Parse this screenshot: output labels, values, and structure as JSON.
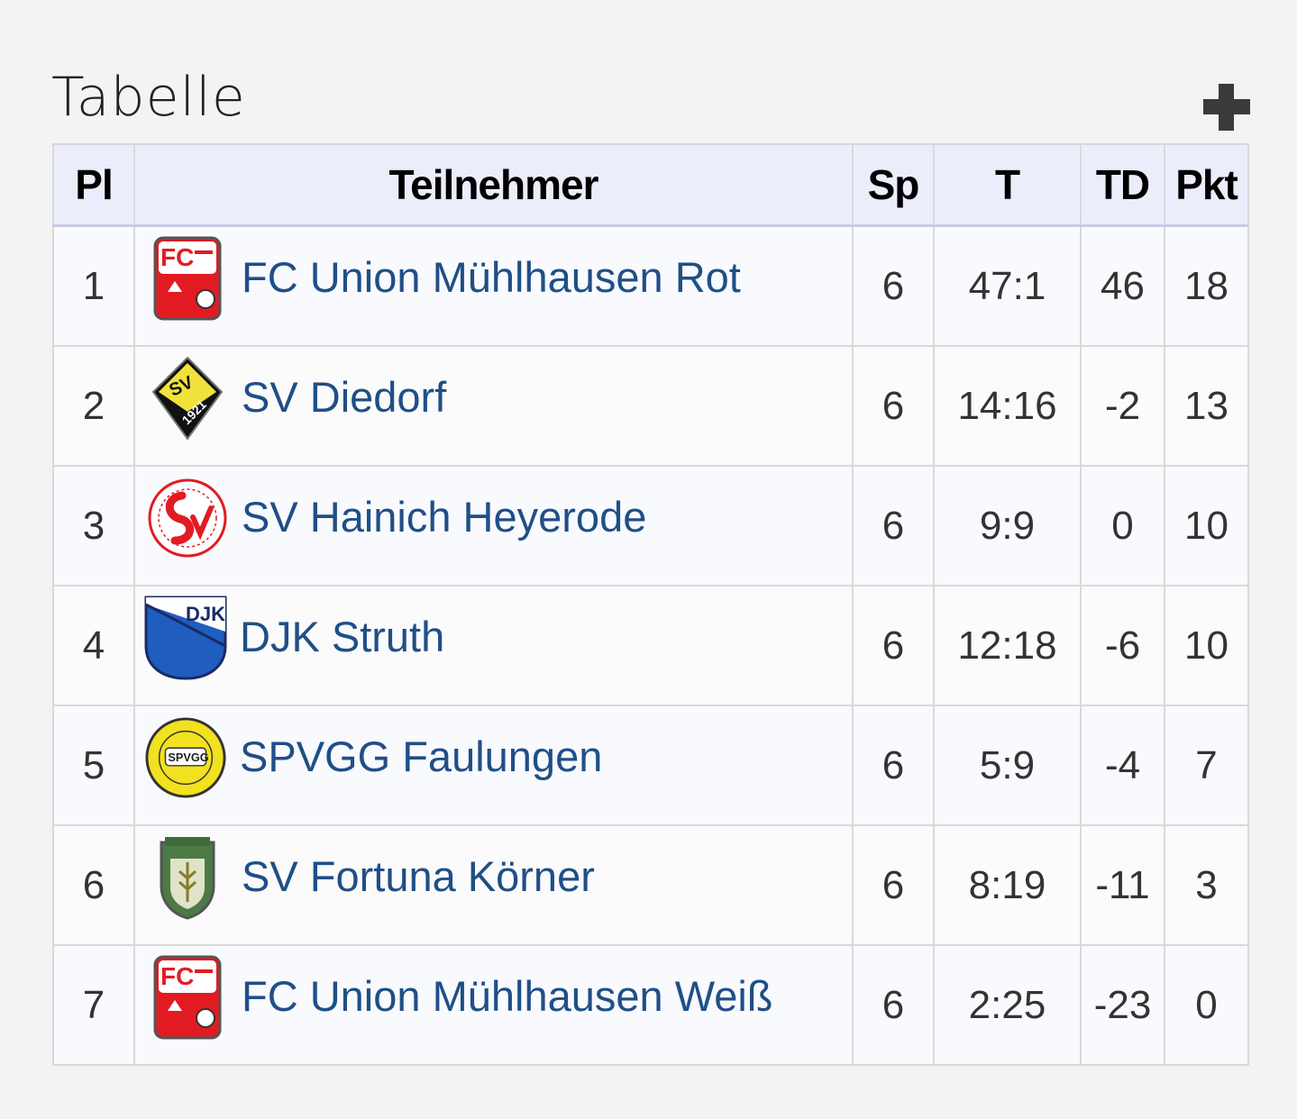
{
  "title": "Tabelle",
  "expand_icon": "plus-icon",
  "columns": {
    "pl": "Pl",
    "team": "Teilnehmer",
    "sp": "Sp",
    "t": "T",
    "td": "TD",
    "pkt": "Pkt"
  },
  "rows": [
    {
      "pl": "1",
      "team": "FC Union Mühlhausen Rot",
      "logo": "fc-union-muehlhausen-logo",
      "sp": "6",
      "t": "47:1",
      "td": "46",
      "pkt": "18"
    },
    {
      "pl": "2",
      "team": "SV Diedorf",
      "logo": "sv-diedorf-logo",
      "sp": "6",
      "t": "14:16",
      "td": "-2",
      "pkt": "13"
    },
    {
      "pl": "3",
      "team": "SV Hainich Heyerode",
      "logo": "sv-hainich-heyerode-logo",
      "sp": "6",
      "t": "9:9",
      "td": "0",
      "pkt": "10"
    },
    {
      "pl": "4",
      "team": "DJK Struth",
      "logo": "djk-struth-logo",
      "sp": "6",
      "t": "12:18",
      "td": "-6",
      "pkt": "10"
    },
    {
      "pl": "5",
      "team": "SPVGG Faulungen",
      "logo": "spvgg-faulungen-logo",
      "sp": "6",
      "t": "5:9",
      "td": "-4",
      "pkt": "7"
    },
    {
      "pl": "6",
      "team": "SV Fortuna Körner",
      "logo": "sv-fortuna-koerner-logo",
      "sp": "6",
      "t": "8:19",
      "td": "-11",
      "pkt": "3"
    },
    {
      "pl": "7",
      "team": "FC Union Mühlhausen Weiß",
      "logo": "fc-union-muehlhausen-logo",
      "sp": "6",
      "t": "2:25",
      "td": "-23",
      "pkt": "0"
    }
  ],
  "colors": {
    "background": "#f3f3f3",
    "header_bg": "#ecedfb",
    "team_link": "#1f4f87",
    "border": "#d9d9d9"
  }
}
